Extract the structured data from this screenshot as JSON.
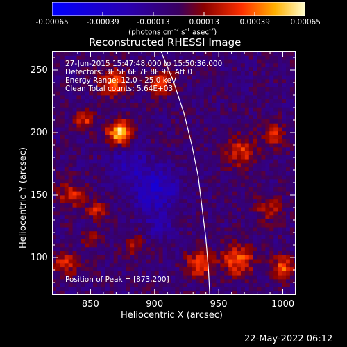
{
  "chart_data": {
    "type": "heatmap",
    "title": "Reconstructed RHESSI Image",
    "xlabel": "Heliocentric X (arcsec)",
    "ylabel": "Heliocentric Y (arcsec)",
    "xlim": [
      820,
      1010
    ],
    "ylim": [
      70,
      265
    ],
    "x_ticks": [
      "850",
      "900",
      "950",
      "1000"
    ],
    "x_tick_values": [
      850,
      900,
      950,
      1000
    ],
    "y_ticks": [
      "100",
      "150",
      "200",
      "250"
    ],
    "y_tick_values": [
      100,
      150,
      200,
      250
    ],
    "colorbar": {
      "ticks": [
        "-0.00065",
        "-0.00039",
        "-0.00013",
        "0.00013",
        "0.00039",
        "0.00065"
      ],
      "tick_values": [
        -0.00065,
        -0.00039,
        -0.00013,
        0.00013,
        0.00039,
        0.00065
      ],
      "label_main": "(photons cm",
      "label_exp1": "-2",
      "label_mid": " s",
      "label_exp2": "-1",
      "label_end": " asec",
      "label_exp3": "-2",
      "label_close": ")",
      "range": [
        -0.00065,
        0.00065
      ]
    },
    "info_lines": [
      "27-Jun-2015 15:47:48.000 to 15:50:36.000",
      "Detectors: 3F 5F 6F 7F 8F 9F, Att 0",
      "Energy Range: 12.0 - 25.0 keV",
      "Clean     Total counts: 5.64E+03"
    ],
    "peak_label": "Position of Peak = [873,200]",
    "peak": [
      873,
      200
    ],
    "limb_curve": [
      [
        905,
        265
      ],
      [
        915,
        240
      ],
      [
        923,
        215
      ],
      [
        929,
        190
      ],
      [
        934,
        165
      ],
      [
        937,
        140
      ],
      [
        940,
        115
      ],
      [
        942,
        90
      ],
      [
        943,
        70
      ]
    ],
    "hot_sources": [
      {
        "x": 873,
        "y": 200,
        "intensity": 0.00065,
        "radius": 9
      },
      {
        "x": 868,
        "y": 240,
        "intensity": 0.00042,
        "radius": 10
      },
      {
        "x": 905,
        "y": 240,
        "intensity": 0.00035,
        "radius": 9
      },
      {
        "x": 845,
        "y": 210,
        "intensity": 0.0003,
        "radius": 8
      },
      {
        "x": 968,
        "y": 185,
        "intensity": 0.00032,
        "radius": 12
      },
      {
        "x": 993,
        "y": 198,
        "intensity": 0.00028,
        "radius": 9
      },
      {
        "x": 835,
        "y": 150,
        "intensity": 0.0003,
        "radius": 10
      },
      {
        "x": 855,
        "y": 138,
        "intensity": 0.00028,
        "radius": 8
      },
      {
        "x": 935,
        "y": 95,
        "intensity": 0.0004,
        "radius": 10
      },
      {
        "x": 965,
        "y": 98,
        "intensity": 0.00042,
        "radius": 12
      },
      {
        "x": 1000,
        "y": 92,
        "intensity": 0.00038,
        "radius": 9
      },
      {
        "x": 990,
        "y": 140,
        "intensity": 0.00025,
        "radius": 10
      },
      {
        "x": 830,
        "y": 95,
        "intensity": 0.00028,
        "radius": 10
      },
      {
        "x": 885,
        "y": 110,
        "intensity": 0.00022,
        "radius": 8
      },
      {
        "x": 850,
        "y": 115,
        "intensity": 0.00024,
        "radius": 6
      }
    ],
    "cold_sources": [
      {
        "x": 900,
        "y": 155,
        "intensity": -0.0003,
        "radius": 18
      },
      {
        "x": 880,
        "y": 175,
        "intensity": -0.00018,
        "radius": 14
      },
      {
        "x": 905,
        "y": 125,
        "intensity": -0.00015,
        "radius": 12
      }
    ]
  },
  "datestamp": "22-May-2022 06:12"
}
